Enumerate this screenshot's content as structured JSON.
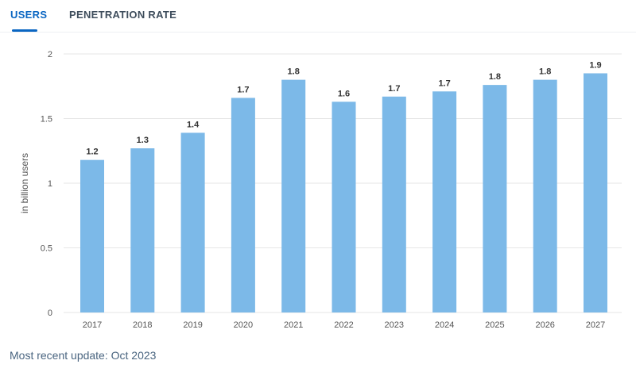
{
  "tabs": [
    {
      "label": "USERS",
      "active": true
    },
    {
      "label": "PENETRATION RATE",
      "active": false
    }
  ],
  "footer": {
    "update_text": "Most recent update: Oct 2023"
  },
  "colors": {
    "bar": "#7cb9e8",
    "accent": "#0a66c2",
    "grid": "#e6e6e6",
    "axis_text": "#555555",
    "label_text": "#333333"
  },
  "chart_data": {
    "type": "bar",
    "title": "",
    "xlabel": "",
    "ylabel": "in billion users",
    "categories": [
      "2017",
      "2018",
      "2019",
      "2020",
      "2021",
      "2022",
      "2023",
      "2024",
      "2025",
      "2026",
      "2027"
    ],
    "values": [
      1.18,
      1.27,
      1.39,
      1.66,
      1.8,
      1.63,
      1.67,
      1.71,
      1.76,
      1.8,
      1.85
    ],
    "data_labels": [
      "1.2",
      "1.3",
      "1.4",
      "1.7",
      "1.8",
      "1.6",
      "1.7",
      "1.7",
      "1.8",
      "1.8",
      "1.9"
    ],
    "ylim": [
      0,
      2
    ],
    "yticks": [
      0,
      0.5,
      1,
      1.5,
      2
    ],
    "ytick_labels": [
      "0",
      "0.5",
      "1",
      "1.5",
      "2"
    ],
    "grid": true,
    "legend": "none"
  }
}
